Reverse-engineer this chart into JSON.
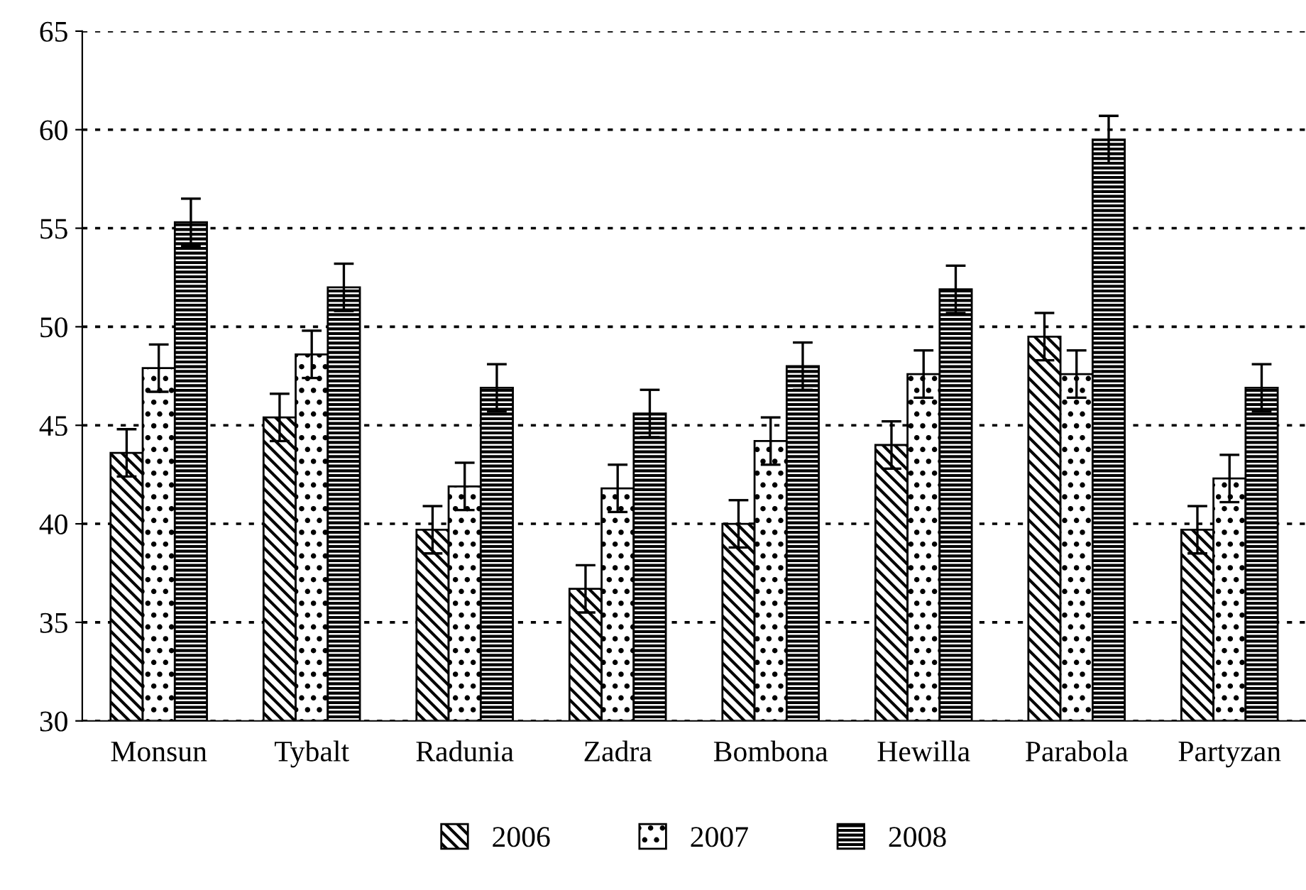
{
  "chart_data": {
    "type": "bar",
    "categories": [
      "Monsun",
      "Tybalt",
      "Radunia",
      "Zadra",
      "Bombona",
      "Hewilla",
      "Parabola",
      "Partyzan"
    ],
    "series": [
      {
        "name": "2006",
        "color": "#000000",
        "values": [
          43.6,
          45.4,
          39.7,
          36.7,
          40.0,
          44.0,
          49.5,
          39.7
        ],
        "errors": [
          1.2,
          1.2,
          1.2,
          1.2,
          1.2,
          1.2,
          1.2,
          1.2
        ]
      },
      {
        "name": "2007",
        "color": "#000000",
        "values": [
          47.9,
          48.6,
          41.9,
          41.8,
          44.2,
          47.6,
          47.6,
          42.3
        ],
        "errors": [
          1.2,
          1.2,
          1.2,
          1.2,
          1.2,
          1.2,
          1.2,
          1.2
        ]
      },
      {
        "name": "2008",
        "color": "#000000",
        "values": [
          55.3,
          52.0,
          46.9,
          45.6,
          48.0,
          51.9,
          59.5,
          46.9
        ],
        "errors": [
          1.2,
          1.2,
          1.2,
          1.2,
          1.2,
          1.2,
          1.2,
          1.2
        ]
      }
    ],
    "ylim": [
      30,
      65
    ],
    "yticks": [
      30,
      35,
      40,
      45,
      50,
      55,
      60,
      65
    ],
    "grid": "y",
    "legend": "bottom"
  }
}
